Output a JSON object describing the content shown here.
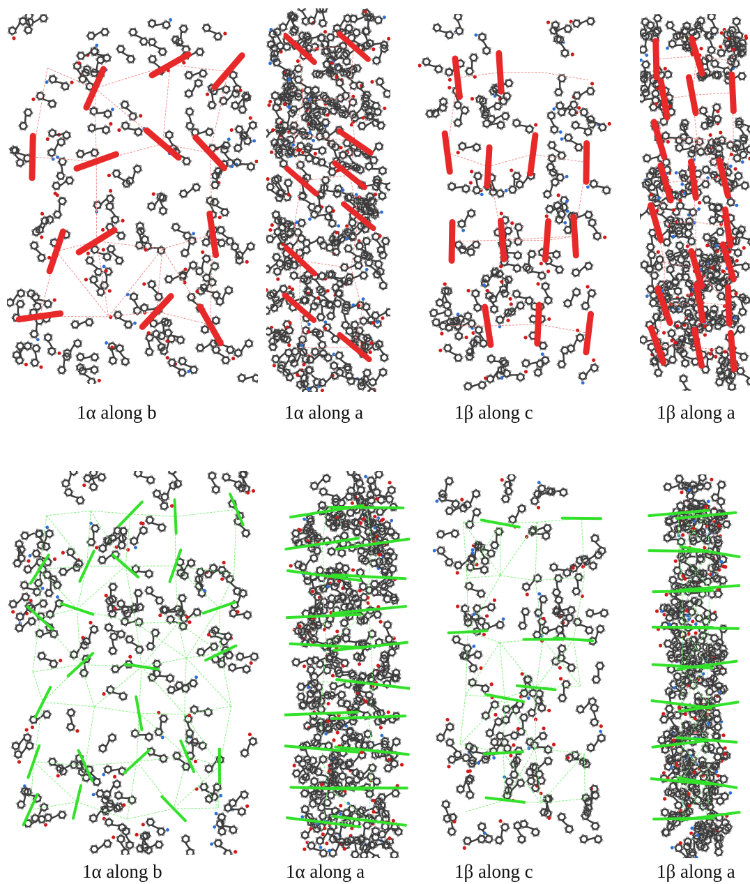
{
  "figure": {
    "rows": [
      {
        "name": "energy-frameworks-red",
        "color": "#e8292a",
        "thin_color": "#f28a8a",
        "panels": [
          {
            "caption": "1α along  b"
          },
          {
            "caption": "1α along  a"
          },
          {
            "caption": "1β along  c"
          },
          {
            "caption": "1β along  a"
          }
        ]
      },
      {
        "name": "energy-frameworks-green",
        "color": "#33e02a",
        "thin_color": "#7ff07a",
        "panels": [
          {
            "caption": "1α along  b"
          },
          {
            "caption": "1α along  a"
          },
          {
            "caption": "1β along  c"
          },
          {
            "caption": "1β along  a"
          }
        ]
      }
    ],
    "atom_colors": {
      "carbon": "#3c3c3c",
      "hydrogen": "#b8b8b8",
      "oxygen": "#d11a1a",
      "nitrogen": "#2c6fd6"
    }
  }
}
